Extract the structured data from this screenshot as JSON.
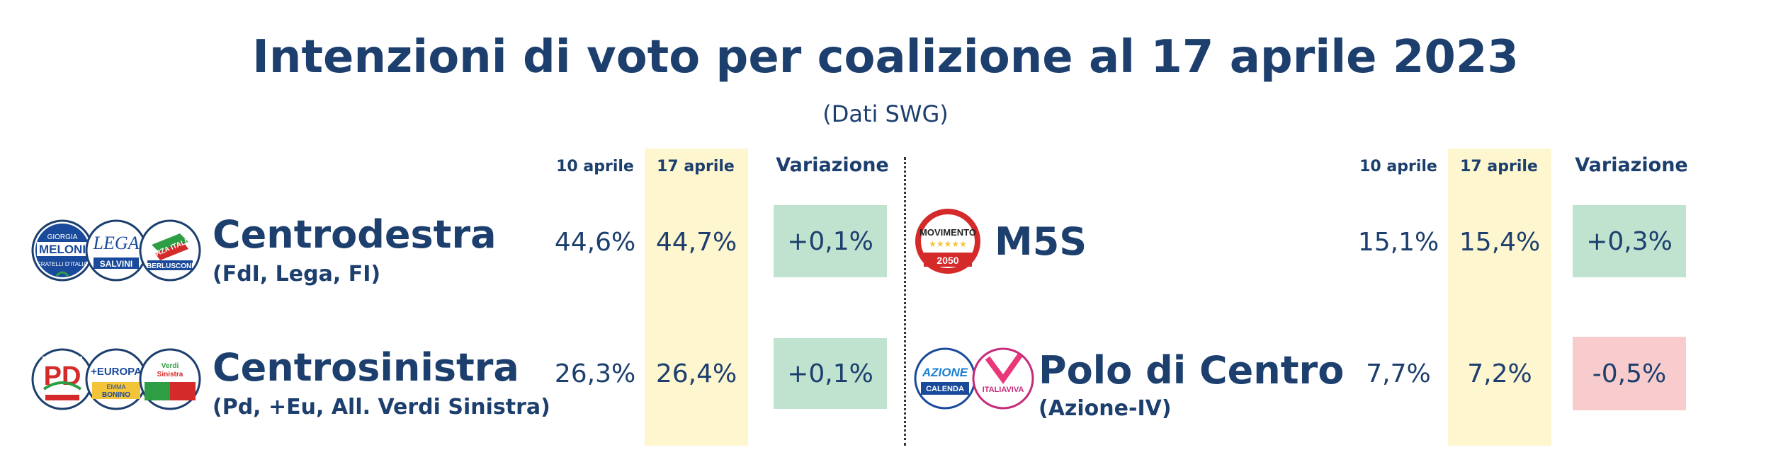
{
  "title": "Intenzioni di voto per coalizione al 17 aprile 2023",
  "subtitle": "(Dati SWG)",
  "columns": {
    "prev": "10 aprile",
    "curr": "17 aprile",
    "change": "Variazione"
  },
  "colors": {
    "text": "#1c3f6e",
    "highlight": "#fdf6cf",
    "positive": "#bfe3cf",
    "negative": "#f8cccd"
  },
  "rows": [
    {
      "name": "Centrodestra",
      "parties": "(FdI, Lega, FI)",
      "prev": "44,6%",
      "curr": "44,7%",
      "change": "+0,1%",
      "logos": [
        "GIORGIA MELONI / FRATELLI D'ITALIA",
        "LEGA / SALVINI PREMIER",
        "FORZA ITALIA / BERLUSCONI PRESIDENTE"
      ]
    },
    {
      "name": "Centrosinistra",
      "parties": "(Pd, +Eu, All. Verdi Sinistra)",
      "prev": "26,3%",
      "curr": "26,4%",
      "change": "+0,1%",
      "logos": [
        "PD",
        "+EUROPA / EMMA BONINO",
        "Alleanza Verdi Sinistra"
      ]
    },
    {
      "name": "M5S",
      "parties": "",
      "prev": "15,1%",
      "curr": "15,4%",
      "change": "+0,3%",
      "logos": [
        "MOVIMENTO / 2050"
      ]
    },
    {
      "name": "Polo di Centro",
      "parties": "(Azione-IV)",
      "prev": "7,7%",
      "curr": "7,2%",
      "change": "-0,5%",
      "logos": [
        "AZIONE / CALENDA",
        "ITALIA VIVA"
      ]
    }
  ],
  "logo_text": {
    "meloni_top": "GIORGIA",
    "meloni_name": "MELONI",
    "meloni_sub": "FRATELLI D'ITALIA",
    "lega": "LEGA",
    "lega_sub": "SALVINI",
    "fi": "FORZA ITALIA",
    "fi_sub": "BERLUSCONI",
    "pd": "PD",
    "europa": "+EUROPA",
    "bonino": "EMMA BONINO",
    "avs": "Verdi Sinistra",
    "m5s": "MOVIMENTO",
    "m5s_year": "2050",
    "azione": "AZIONE",
    "calenda": "CALENDA",
    "iv": "ITALIAVIVA"
  }
}
